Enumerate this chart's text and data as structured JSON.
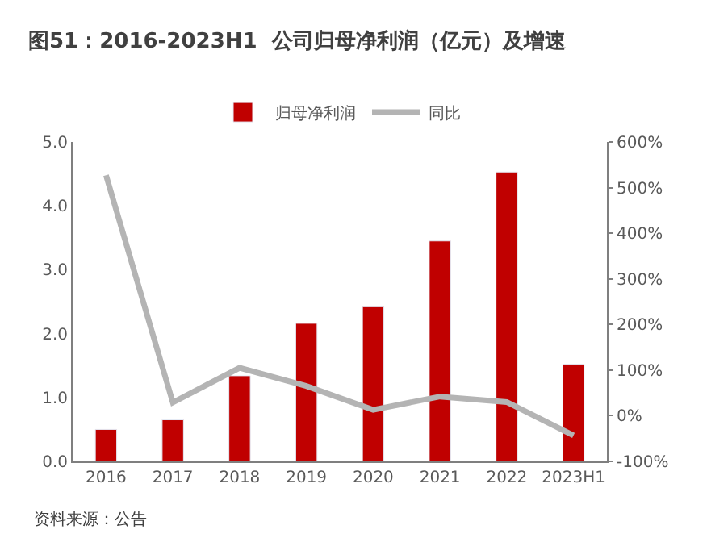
{
  "chart_data": {
    "type": "bar",
    "title": "图51：2016-2023H1  公司归母净利润（亿元）及增速",
    "categories": [
      "2016",
      "2017",
      "2018",
      "2019",
      "2020",
      "2021",
      "2022",
      "2023H1"
    ],
    "series": [
      {
        "name": "归母净利润",
        "color": "#c00000",
        "values": [
          0.5,
          0.65,
          1.34,
          2.16,
          2.42,
          3.45,
          4.53,
          1.52
        ]
      },
      {
        "name": "同比",
        "type": "line",
        "axis": "y2",
        "color": "#b4b4b4",
        "marker": "none",
        "values": [
          527,
          29,
          105,
          65,
          13,
          42,
          30,
          -43
        ]
      }
    ],
    "ylim": [
      0,
      5
    ],
    "yticks": [
      {
        "value": 0,
        "label": "0.0"
      },
      {
        "value": 1,
        "label": "1.0"
      },
      {
        "value": 2,
        "label": "2.0"
      },
      {
        "value": 3,
        "label": "3.0"
      },
      {
        "value": 4,
        "label": "4.0"
      },
      {
        "value": 5,
        "label": "5.0"
      }
    ],
    "y2lim": [
      -100,
      600
    ],
    "y2ticks": [
      {
        "value": -100,
        "label": "-100%"
      },
      {
        "value": 0,
        "label": "0%"
      },
      {
        "value": 100,
        "label": "100%"
      },
      {
        "value": 200,
        "label": "200%"
      },
      {
        "value": 300,
        "label": "300%"
      },
      {
        "value": 400,
        "label": "400%"
      },
      {
        "value": 500,
        "label": "500%"
      },
      {
        "value": 600,
        "label": "600%"
      }
    ],
    "legend": "top",
    "annotations": [
      "资料来源：公告"
    ]
  }
}
